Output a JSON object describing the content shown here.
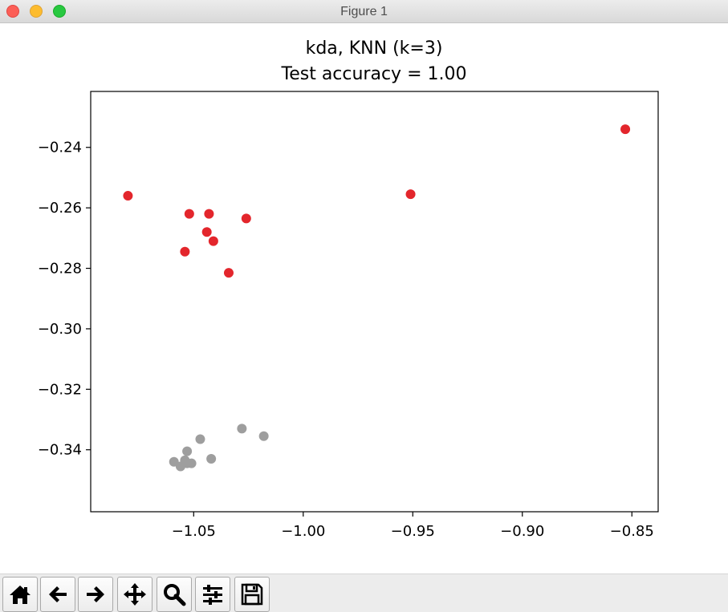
{
  "window": {
    "title": "Figure 1"
  },
  "toolbar": {
    "buttons": [
      {
        "name": "home-icon"
      },
      {
        "name": "back-arrow-icon"
      },
      {
        "name": "forward-arrow-icon"
      },
      {
        "name": "pan-move-icon"
      },
      {
        "name": "zoom-magnifier-icon"
      },
      {
        "name": "configure-subplots-icon"
      },
      {
        "name": "save-floppy-icon"
      }
    ]
  },
  "chart_data": {
    "type": "scatter",
    "title": "kda, KNN (k=3)",
    "subtitle": "Test accuracy = 1.00",
    "xlabel": "",
    "ylabel": "",
    "xlim": [
      -1.097,
      -0.838
    ],
    "ylim": [
      -0.3605,
      -0.2215
    ],
    "xticks": [
      -1.05,
      -1.0,
      -0.95,
      -0.9,
      -0.85
    ],
    "xtick_labels": [
      "−1.05",
      "−1.00",
      "−0.95",
      "−0.90",
      "−0.85"
    ],
    "yticks": [
      -0.24,
      -0.26,
      -0.28,
      -0.3,
      -0.32,
      -0.34
    ],
    "ytick_labels": [
      "−0.24",
      "−0.26",
      "−0.28",
      "−0.30",
      "−0.32",
      "−0.34"
    ],
    "grid": false,
    "series": [
      {
        "color": "#e3262c",
        "x": [
          -0.853,
          -1.08,
          -0.951,
          -1.052,
          -1.043,
          -1.026,
          -1.044,
          -1.041,
          -1.054,
          -1.034
        ],
        "y": [
          -0.234,
          -0.256,
          -0.2555,
          -0.262,
          -0.262,
          -0.2635,
          -0.268,
          -0.271,
          -0.2745,
          -0.2815
        ]
      },
      {
        "color": "#9e9e9e",
        "x": [
          -1.028,
          -1.018,
          -1.047,
          -1.053,
          -1.042,
          -1.054,
          -1.059,
          -1.051,
          -1.056,
          -1.053
        ],
        "y": [
          -0.333,
          -0.3355,
          -0.3365,
          -0.3405,
          -0.343,
          -0.3435,
          -0.344,
          -0.3445,
          -0.3455,
          -0.3445
        ]
      }
    ]
  }
}
